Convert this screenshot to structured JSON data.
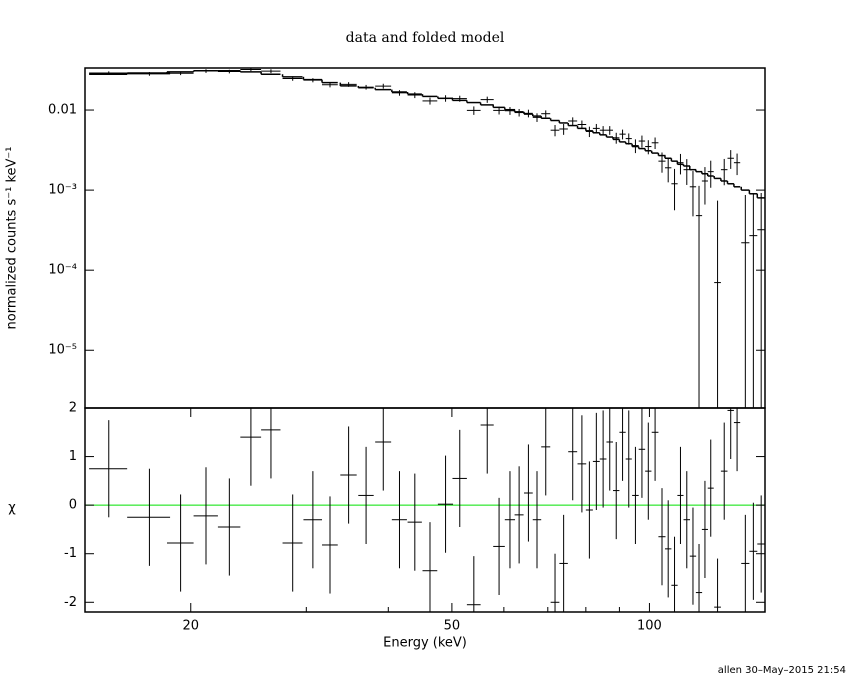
{
  "chart_data": [
    {
      "type": "errorbar",
      "title": "data and folded model",
      "ylabel": "normalized counts s⁻¹ keV⁻¹",
      "xscale": "log",
      "yscale": "log",
      "xlim": [
        13.8,
        150
      ],
      "ylim": [
        1.9e-06,
        0.0335
      ],
      "yticks": [
        {
          "value": 0.01,
          "label": "0.01"
        },
        {
          "value": 0.001,
          "label": "10⁻³"
        },
        {
          "value": 0.0001,
          "label": "10⁻⁴"
        },
        {
          "value": 1e-05,
          "label": "10⁻⁵"
        }
      ],
      "color": "#000000",
      "x": [
        15,
        17.3,
        19.3,
        21.1,
        22.9,
        24.7,
        26.5,
        28.6,
        30.7,
        32.6,
        34.8,
        37,
        39.3,
        41.6,
        43.9,
        46.3,
        48.9,
        51.4,
        54,
        56.6,
        59,
        61.3,
        63.3,
        65.4,
        67.4,
        69.5,
        71.8,
        74,
        76.4,
        78.9,
        81,
        83,
        85,
        87,
        89,
        91,
        93,
        95.2,
        97.4,
        99.6,
        102,
        104.5,
        106.8,
        109.2,
        111.5,
        114,
        116.5,
        119,
        121.5,
        124,
        127,
        130,
        133,
        136,
        140,
        144,
        148
      ],
      "x_err": [
        1,
        1.3,
        0.9,
        0.9,
        0.9,
        0.9,
        0.9,
        1,
        1,
        0.9,
        1,
        1,
        1.1,
        1.1,
        1.1,
        1.2,
        1.3,
        1.3,
        1.3,
        1.3,
        1.2,
        1.1,
        1,
        1,
        1,
        1.1,
        1.1,
        1.1,
        1.2,
        1.2,
        1,
        1,
        1,
        1,
        1,
        1,
        1,
        1.1,
        1.1,
        1.1,
        1.2,
        1.3,
        1.2,
        1.2,
        1.2,
        1.3,
        1.3,
        1.3,
        1.3,
        1.3,
        1.5,
        1.5,
        1.5,
        1.5,
        2,
        2,
        2
      ],
      "values": [
        0.029,
        0.0283,
        0.0288,
        0.0307,
        0.0303,
        0.0321,
        0.0306,
        0.0248,
        0.0236,
        0.0207,
        0.0209,
        0.0193,
        0.0199,
        0.0164,
        0.0154,
        0.013,
        0.014,
        0.0139,
        0.0099,
        0.0135,
        0.0099,
        0.0098,
        0.0093,
        0.0091,
        0.0081,
        0.009,
        0.0056,
        0.0058,
        0.0073,
        0.0066,
        0.0054,
        0.0059,
        0.0056,
        0.0056,
        0.0045,
        0.005,
        0.0044,
        0.0036,
        0.0041,
        0.0035,
        0.0039,
        0.0023,
        0.0019,
        0.0012,
        0.0022,
        0.0018,
        0.0011,
        0.00048,
        0.0013,
        0.0017,
        7e-05,
        0.0018,
        0.0025,
        0.0022,
        0.00022,
        0.00027,
        0.00032
      ],
      "errors": [
        0.0014,
        0.0015,
        0.0015,
        0.0016,
        0.0016,
        0.0015,
        0.0017,
        0.0016,
        0.0014,
        0.0015,
        0.0014,
        0.0013,
        0.0014,
        0.0013,
        0.0013,
        0.0013,
        0.0013,
        0.0012,
        0.0012,
        0.0012,
        0.0011,
        0.0011,
        0.001,
        0.001,
        0.001,
        0.0009,
        0.0009,
        0.0009,
        0.0008,
        0.0008,
        0.0008,
        0.0008,
        0.0007,
        0.0007,
        0.0007,
        0.0007,
        0.0007,
        0.0007,
        0.0007,
        0.0007,
        0.00064,
        0.00065,
        0.00065,
        0.00064,
        0.00063,
        0.00064,
        0.00063,
        0.00065,
        0.00064,
        0.00063,
        0.00067,
        0.00065,
        0.00066,
        0.00066,
        0.00065,
        0.00063,
        0.0006
      ],
      "model": [
        0.028,
        0.029,
        0.03,
        0.031,
        0.031,
        0.03,
        0.028,
        0.026,
        0.024,
        0.022,
        0.02,
        0.019,
        0.018,
        0.0168,
        0.0158,
        0.0148,
        0.014,
        0.0132,
        0.0124,
        0.0116,
        0.0108,
        0.0101,
        0.0095,
        0.0089,
        0.0084,
        0.0079,
        0.0074,
        0.0069,
        0.0064,
        0.0059,
        0.0055,
        0.0052,
        0.0049,
        0.0046,
        0.0043,
        0.004,
        0.0038,
        0.0035,
        0.0033,
        0.0031,
        0.0029,
        0.0027,
        0.0025,
        0.0023,
        0.0021,
        0.002,
        0.0018,
        0.0017,
        0.0016,
        0.0015,
        0.0014,
        0.0013,
        0.0012,
        0.0011,
        0.001,
        0.0009,
        0.0008
      ]
    },
    {
      "type": "residual",
      "ylabel": "χ",
      "xlabel": "Energy (keV)",
      "xscale": "log",
      "xlim": [
        13.8,
        150
      ],
      "ylim": [
        -2.2,
        2
      ],
      "xticks": [
        20,
        50,
        100
      ],
      "xminorticks": [
        30,
        40,
        60,
        70,
        80,
        90
      ],
      "yticks": [
        2,
        1,
        0,
        -1,
        -2
      ],
      "color": "#000000",
      "reference_line": {
        "value": 0,
        "color": "#00e000"
      },
      "chi_error": 1,
      "values": [
        0.75,
        -0.25,
        -0.78,
        -0.22,
        -0.45,
        1.4,
        1.55,
        -0.78,
        -0.3,
        -0.82,
        0.62,
        0.2,
        1.3,
        -0.3,
        -0.35,
        -1.35,
        0.02,
        0.55,
        -2.05,
        1.65,
        -0.85,
        -0.3,
        -0.2,
        0.25,
        -0.3,
        1.2,
        -2,
        -1.2,
        1.1,
        0.85,
        -0.1,
        0.9,
        0.95,
        1.3,
        0.3,
        1.5,
        0.95,
        0.2,
        1.15,
        0.7,
        1.5,
        -0.65,
        -0.9,
        -1.65,
        0.2,
        -0.3,
        -1.05,
        -1.8,
        -0.5,
        0.35,
        -2.1,
        0.7,
        1.95,
        1.7,
        -1.2,
        -0.95,
        -0.8
      ]
    }
  ],
  "footer": "allen 30–May–2015 21:54"
}
